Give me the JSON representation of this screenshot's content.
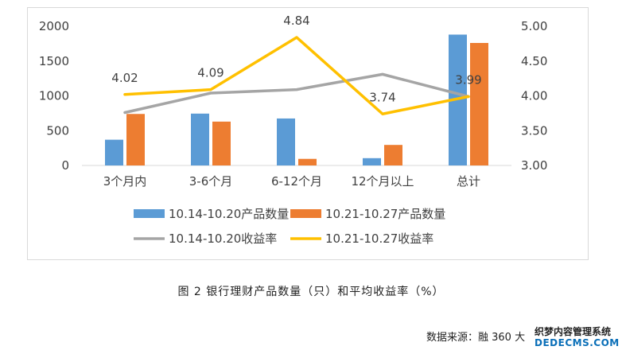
{
  "chart_data": {
    "type": "bar",
    "categories": [
      "3个月内",
      "3-6个月",
      "6-12个月",
      "12个月以上",
      "总计"
    ],
    "series": [
      {
        "name": "10.14-10.20产品数量",
        "type": "bar",
        "axis": "left",
        "color": "#5b9bd5",
        "values": [
          370,
          745,
          675,
          105,
          1880
        ]
      },
      {
        "name": "10.21-10.27产品数量",
        "type": "bar",
        "axis": "left",
        "color": "#ed7d31",
        "values": [
          740,
          630,
          95,
          295,
          1760
        ]
      },
      {
        "name": "10.14-10.20收益率",
        "type": "line",
        "axis": "right",
        "color": "#a5a5a5",
        "values": [
          3.76,
          4.04,
          4.09,
          4.31,
          3.99
        ]
      },
      {
        "name": "10.21-10.27收益率",
        "type": "line",
        "axis": "right",
        "color": "#ffc000",
        "values": [
          4.02,
          4.09,
          4.84,
          3.74,
          3.99
        ],
        "data_labels": [
          "4.02",
          "4.09",
          "4.84",
          "3.74",
          "3.99"
        ]
      }
    ],
    "y_left": {
      "min": 0,
      "max": 2000,
      "ticks": [
        "0",
        "500",
        "1000",
        "1500",
        "2000"
      ]
    },
    "y_right": {
      "min": 3.0,
      "max": 5.0,
      "ticks": [
        "3.00",
        "3.50",
        "4.00",
        "4.50",
        "5.00"
      ]
    },
    "grid": false,
    "legend_position": "bottom"
  },
  "caption": "图 2  银行理财产品数量（只）和平均收益率（%）",
  "source": "数据来源：融 360 大",
  "watermark": {
    "line1": "织梦内容管理系统",
    "line2": "DEDECMS.COM"
  }
}
